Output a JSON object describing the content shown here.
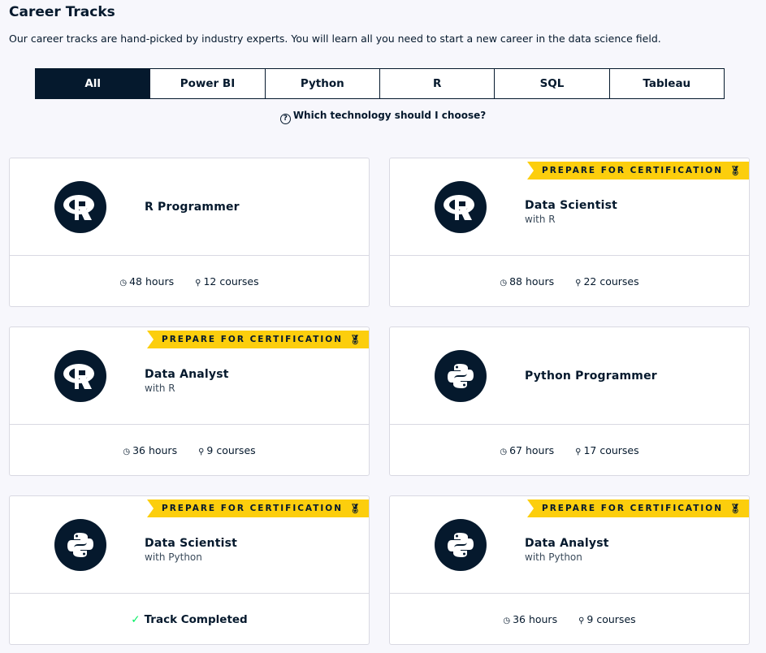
{
  "header": {
    "title": "Career Tracks",
    "description": "Our career tracks are hand-picked by industry experts. You will learn all you need to start a new career in the data science field."
  },
  "tabs": [
    {
      "label": "All",
      "active": true
    },
    {
      "label": "Power BI"
    },
    {
      "label": "Python"
    },
    {
      "label": "R"
    },
    {
      "label": "SQL"
    },
    {
      "label": "Tableau"
    }
  ],
  "help": {
    "label": "Which technology should I choose?",
    "icon": "question-circle-icon"
  },
  "badge_label": "PREPARE FOR CERTIFICATION",
  "cards": [
    {
      "tech": "r",
      "title": "R Programmer",
      "subtitle": "",
      "cert": false,
      "hours": "48 hours",
      "courses": "12 courses"
    },
    {
      "tech": "r",
      "title": "Data Scientist",
      "subtitle": "with R",
      "cert": true,
      "hours": "88 hours",
      "courses": "22 courses"
    },
    {
      "tech": "r",
      "title": "Data Analyst",
      "subtitle": "with R",
      "cert": true,
      "hours": "36 hours",
      "courses": "9 courses"
    },
    {
      "tech": "python",
      "title": "Python Programmer",
      "subtitle": "",
      "cert": false,
      "hours": "67 hours",
      "courses": "17 courses"
    },
    {
      "tech": "python",
      "title": "Data Scientist",
      "subtitle": "with Python",
      "cert": true,
      "completed": "Track Completed"
    },
    {
      "tech": "python",
      "title": "Data Analyst",
      "subtitle": "with Python",
      "cert": true,
      "hours": "36 hours",
      "courses": "9 courses"
    }
  ],
  "colors": {
    "primary": "#05192d",
    "badge": "#fcce0d",
    "check": "#03ef62",
    "background": "#f7f7fc"
  }
}
